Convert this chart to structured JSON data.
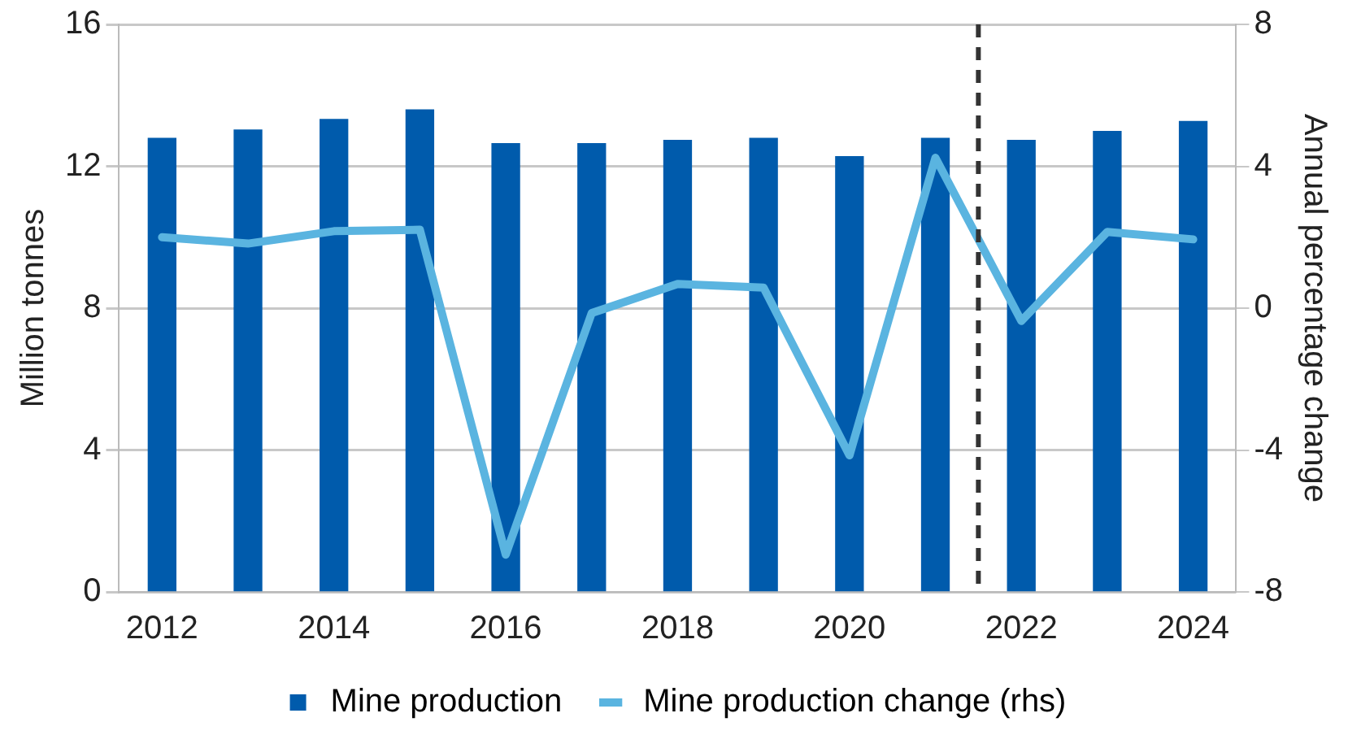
{
  "chart_data": {
    "type": "bar",
    "ylabel": "Million tonnes",
    "y2label": "Annual percentage change",
    "x": [
      2012,
      2013,
      2014,
      2015,
      2016,
      2017,
      2018,
      2019,
      2020,
      2021,
      2022,
      2023,
      2024
    ],
    "xlim": [
      2011.5,
      2024.5
    ],
    "xticks": [
      2012,
      2014,
      2016,
      2018,
      2020,
      2022,
      2024
    ],
    "ylim": [
      0,
      16
    ],
    "yticks": [
      0,
      4,
      8,
      12,
      16
    ],
    "y2lim": [
      -8,
      8
    ],
    "y2ticks": [
      -8,
      -4,
      0,
      4,
      8
    ],
    "series": [
      {
        "name": "Mine production",
        "color": "#005bac",
        "values": [
          12.79,
          13.02,
          13.32,
          13.59,
          12.64,
          12.64,
          12.73,
          12.79,
          12.27,
          12.79,
          12.73,
          12.98,
          13.26
        ]
      },
      {
        "name": "Mine production change (rhs)",
        "type": "line",
        "axis": "y2",
        "color": "#5ab4e0",
        "values": [
          2.0,
          1.82,
          2.17,
          2.21,
          -6.95,
          -0.14,
          0.68,
          0.58,
          -4.15,
          4.24,
          -0.36,
          2.15,
          1.94
        ]
      }
    ],
    "ref_lines": [
      {
        "axis": "x",
        "value": 2021.5,
        "color": "#333333",
        "line_style": "dashed"
      }
    ],
    "grid": "y",
    "legend": "bottom",
    "marker": "none",
    "line_style": "solid"
  }
}
